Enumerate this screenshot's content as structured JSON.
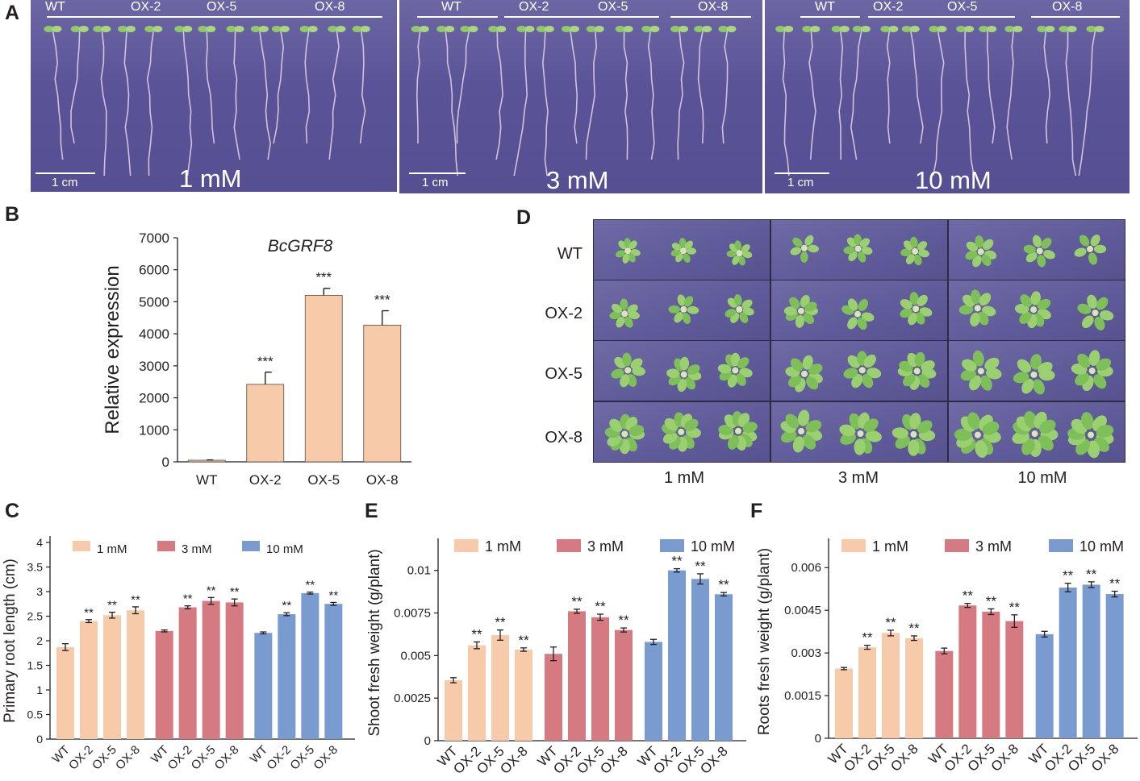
{
  "panel_A": {
    "label": "A",
    "plates": [
      {
        "groups": [
          "WT",
          "OX-2",
          "OX-5",
          "OX-8"
        ],
        "scale": "1 cm",
        "concentration": "1 mM"
      },
      {
        "groups": [
          "WT",
          "OX-2",
          "OX-5",
          "OX-8"
        ],
        "scale": "1 cm",
        "concentration": "3 mM"
      },
      {
        "groups": [
          "WT",
          "OX-2",
          "OX-5",
          "OX-8"
        ],
        "scale": "1 cm",
        "concentration": "10 mM"
      }
    ]
  },
  "panel_B": {
    "label": "B"
  },
  "panel_C": {
    "label": "C"
  },
  "panel_D": {
    "label": "D",
    "rows": [
      "WT",
      "OX-2",
      "OX-5",
      "OX-8"
    ],
    "cols": [
      "1 mM",
      "3 mM",
      "10 mM"
    ]
  },
  "panel_E": {
    "label": "E"
  },
  "panel_F": {
    "label": "F"
  },
  "colors": {
    "one_mM": "#f7cba9",
    "three_mM": "#d67a82",
    "ten_mM": "#7a9bd0",
    "photo_bg": "#5d5698",
    "seedling": "#8fc96a"
  },
  "chart_data": [
    {
      "id": "B",
      "type": "bar",
      "title": "BcGRF8",
      "xlabel": "",
      "ylabel": "Relative expression",
      "categories": [
        "WT",
        "OX-2",
        "OX-5",
        "OX-8"
      ],
      "values": [
        50,
        2420,
        5200,
        4270
      ],
      "errors": [
        10,
        380,
        220,
        450
      ],
      "significance": [
        "",
        "***",
        "***",
        "***"
      ],
      "ylim": [
        0,
        7000
      ],
      "yticks": [
        "0",
        "1000",
        "2000",
        "3000",
        "4000",
        "5000",
        "6000",
        "7000"
      ],
      "color": "#f7cba9"
    },
    {
      "id": "C",
      "type": "bar",
      "ylabel": "Primary root length (cm)",
      "xlabel": "",
      "categories": [
        "WT",
        "OX-2",
        "OX-5",
        "OX-8"
      ],
      "legend": [
        "1 mM",
        "3 mM",
        "10 mM"
      ],
      "series": [
        {
          "name": "1 mM",
          "values": [
            1.87,
            2.4,
            2.52,
            2.62
          ],
          "errors": [
            0.07,
            0.03,
            0.06,
            0.07
          ],
          "significance": [
            "",
            "**",
            "**",
            "**"
          ],
          "color": "#f7cba9"
        },
        {
          "name": "3 mM",
          "values": [
            2.2,
            2.68,
            2.81,
            2.78
          ],
          "errors": [
            0.02,
            0.03,
            0.07,
            0.07
          ],
          "significance": [
            "",
            "**",
            "**",
            "**"
          ],
          "color": "#d67a82"
        },
        {
          "name": "10 mM",
          "values": [
            2.16,
            2.54,
            2.97,
            2.75
          ],
          "errors": [
            0.02,
            0.03,
            0.02,
            0.03
          ],
          "significance": [
            "",
            "**",
            "**",
            "**"
          ],
          "color": "#7a9bd0"
        }
      ],
      "ylim": [
        0,
        4
      ],
      "yticks": [
        "0",
        "0.5",
        "1",
        "1.5",
        "2",
        "2.5",
        "3",
        "3.5",
        "4"
      ]
    },
    {
      "id": "E",
      "type": "bar",
      "ylabel": "Shoot fresh weight (g/plant)",
      "xlabel": "",
      "categories": [
        "WT",
        "OX-2",
        "OX-5",
        "OX-8"
      ],
      "legend": [
        "1 mM",
        "3 mM",
        "10 mM"
      ],
      "series": [
        {
          "name": "1 mM",
          "values": [
            0.00355,
            0.0056,
            0.0062,
            0.00535
          ],
          "errors": [
            0.00015,
            0.0002,
            0.0003,
            0.0001
          ],
          "significance": [
            "",
            "**",
            "**",
            "**"
          ],
          "color": "#f7cba9"
        },
        {
          "name": "3 mM",
          "values": [
            0.0051,
            0.0076,
            0.00725,
            0.0065
          ],
          "errors": [
            0.0004,
            0.00012,
            0.00018,
            0.00012
          ],
          "significance": [
            "",
            "**",
            "**",
            "**"
          ],
          "color": "#d67a82"
        },
        {
          "name": "10 mM",
          "values": [
            0.0058,
            0.01,
            0.0095,
            0.0086
          ],
          "errors": [
            0.00015,
            0.0001,
            0.0003,
            0.0001
          ],
          "significance": [
            "",
            "**",
            "**",
            "**"
          ],
          "color": "#7a9bd0"
        }
      ],
      "ylim": [
        0,
        0.0115
      ],
      "yticks": [
        "0",
        "0.0025",
        "0.005",
        "0.0075",
        "0.01"
      ]
    },
    {
      "id": "F",
      "type": "bar",
      "ylabel": "Roots  fresh weight (g/plant)",
      "xlabel": "",
      "categories": [
        "WT",
        "OX-2",
        "OX-5",
        "OX-8"
      ],
      "legend": [
        "1 mM",
        "3 mM",
        "10 mM"
      ],
      "series": [
        {
          "name": "1 mM",
          "values": [
            0.00245,
            0.0032,
            0.0037,
            0.00352
          ],
          "errors": [
            4e-05,
            7e-05,
            0.0001,
            8e-05
          ],
          "significance": [
            "",
            "**",
            "**",
            "**"
          ],
          "color": "#f7cba9"
        },
        {
          "name": "3 mM",
          "values": [
            0.00307,
            0.00467,
            0.00445,
            0.00412
          ],
          "errors": [
            0.0001,
            7e-05,
            0.0001,
            0.00022
          ],
          "significance": [
            "",
            "**",
            "**",
            "**"
          ],
          "color": "#d67a82"
        },
        {
          "name": "10 mM",
          "values": [
            0.00366,
            0.0053,
            0.0054,
            0.00507
          ],
          "errors": [
            0.0001,
            0.00015,
            0.0001,
            0.0001
          ],
          "significance": [
            "",
            "**",
            "**",
            "**"
          ],
          "color": "#7a9bd0"
        }
      ],
      "ylim": [
        0,
        0.0068
      ],
      "yticks": [
        "0",
        "0.0015",
        "0.003",
        "0.0045",
        "0.006"
      ]
    }
  ]
}
